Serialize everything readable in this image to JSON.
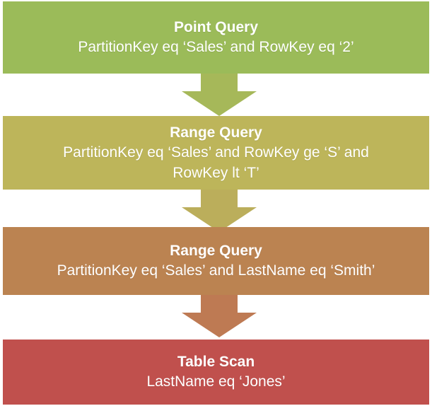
{
  "steps": [
    {
      "title": "Point Query",
      "description": "PartitionKey eq ‘Sales’ and RowKey eq ‘2’",
      "color": "#9BBB59"
    },
    {
      "title": "Range Query",
      "description": "PartitionKey eq ‘Sales’ and RowKey ge ‘S’ and RowKey lt ‘T’",
      "color": "#BDB55A"
    },
    {
      "title": "Range Query",
      "description": "PartitionKey eq ‘Sales’ and LastName eq ‘Smith’",
      "color": "#BB8351"
    },
    {
      "title": "Table Scan",
      "description": "LastName eq ‘Jones’",
      "color": "#C0504D"
    }
  ],
  "arrows": [
    {
      "color": "#A6B859"
    },
    {
      "color": "#BBAE5B"
    },
    {
      "color": "#BE7A53"
    }
  ]
}
